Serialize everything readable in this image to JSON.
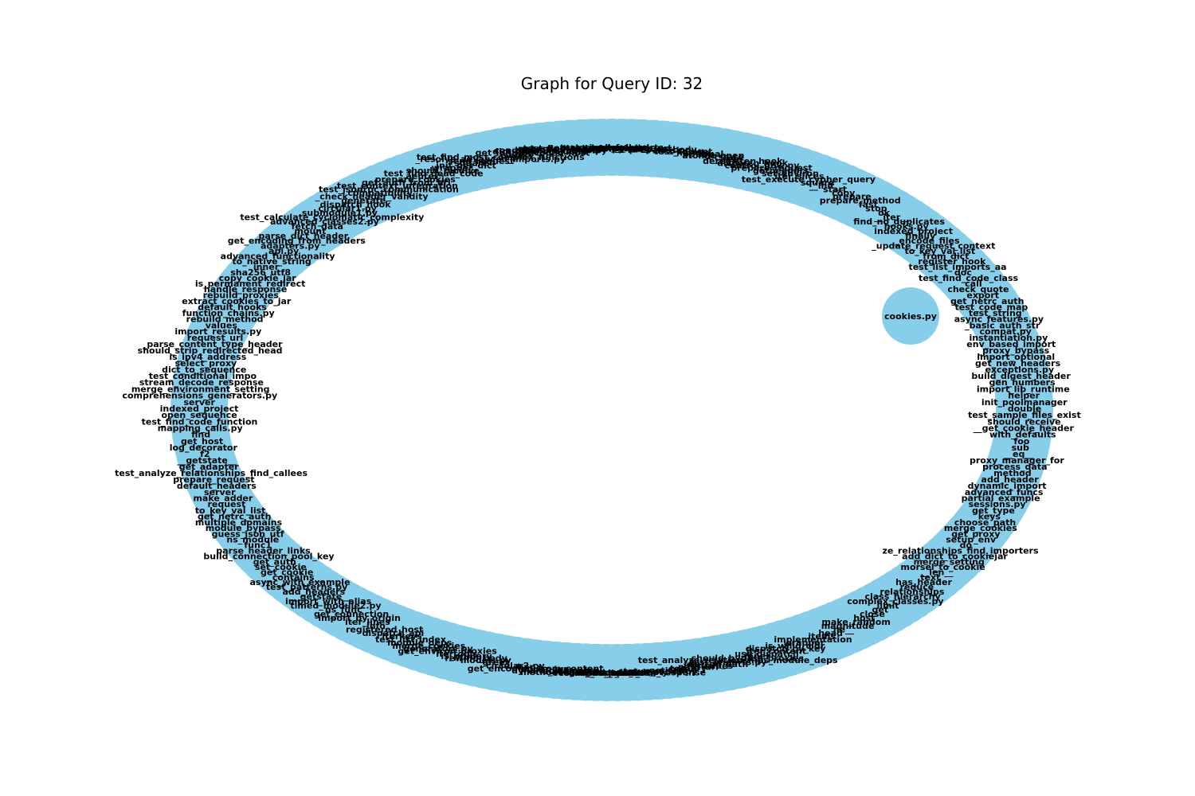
{
  "title": "Graph for Query ID: 32",
  "colors": {
    "node": "#87CEEB",
    "label": "#000000",
    "background": "#ffffff"
  },
  "graph": {
    "layout": "circular",
    "ring_labels": [
      "test_circular_imports",
      "get_full_url",
      "__call__",
      "requote_uri",
      "request",
      "prepare_body",
      "session",
      "test_toolset",
      "handle",
      "optional",
      "atomic_open",
      "setstate",
      "__repr__",
      "deregister_hook",
      "dispatch_hook",
      "control_flow.py",
      "prepare_request",
      "getheaders",
      "set_environ",
      "iter_slices",
      "test_execute_cypher_query",
      "square",
      "__init__",
      "start",
      "copy",
      "prepare",
      "prepare_method",
      "fast",
      "stop",
      "ok",
      "__iter__",
      "find_no_duplicates",
      "hooks.py",
      "indexed_project",
      "finally",
      "_encode_files",
      "_update_request_context",
      "to_key_val_list",
      "from_dict",
      "register_hook",
      "test_list_imports_aa",
      "doc",
      "test_find_code_class",
      "call",
      "check_quote",
      "export",
      "get_netrc_auth",
      "test_code_map",
      "test_string",
      "async_features.py",
      "_basic_auth_str",
      "compat.py",
      "instantiation.py",
      "env_based_import",
      "_proxy_bypass",
      "import_optional",
      "get_new_headers",
      "exceptions.py",
      "build_digest_header",
      "gen_numbers",
      "import_lib_runtime",
      "helper",
      "init_poolmanager",
      "double",
      "test_sample_files_exist",
      "should_receive",
      "__get_cookie_header",
      "with_defaults",
      "foo",
      "sub",
      "__eq__",
      "proxy_manager_for",
      "process_data",
      "method",
      "add_header",
      "dynamic_import",
      "advanced_funcs",
      "partial_example",
      "sessions.py",
      "get_type",
      "keys",
      "choose_path",
      "merge_cookies",
      "get_proxy",
      "setup_env",
      "do",
      "ze_relationships_find_importers",
      "add_dict_to_cookiejar",
      "merge_setting",
      "morsel_to_cookie",
      "__len__",
      "text",
      "has_header",
      "reduce",
      "_relationships",
      "class_hierarchy",
      "complex_classes.py",
      "limit",
      "get",
      "close",
      "host",
      "make_random",
      "magnitude",
      "__ne__",
      "head",
      "items",
      "implementation",
      "wrapper",
      "is_valid_cidr",
      "dispatch_by_key",
      "iter_content",
      "use_dispatch",
      "inner",
      "should_bypass_proxies",
      "test_analyze_relationships_module_deps",
      "test_imports.py",
      "dotted_path",
      "itervalues",
      "path_url",
      "ternary",
      "put",
      "getitem",
      "status_codes.py",
      "multiply",
      "get_unicode_from_response",
      "_init_",
      "class_method",
      "encode_params",
      "resolve_redirects",
      "add",
      "methodcaller_example",
      "is_redirect",
      "dynamic_dispatch",
      "super_len",
      "get_encoding_from_content",
      "bar",
      "circular2.py",
      "f3",
      "greet",
      "models.py",
      "rewind_body",
      "is_primary",
      "itertools",
      "get_environ_proxies",
      "generators.py",
      "merge_cookies",
      "module_deps",
      "test_list_index",
      "iterkeys",
      "dispatch_api",
      "registered_host",
      "info",
      "iter_lines",
      "import_by_origin",
      "get_connection",
      "ns_func",
      "timed_module2.py",
      "import_with_alias",
      "__getstate__",
      "add_headers",
      "test_patterns.py",
      "async_with_example",
      "__contains__",
      "get_cookie",
      "set_cookie",
      "get_auth",
      "build_connection_pool_key",
      "parse_header_links",
      "func1",
      "ns_module",
      "guess_json_utf",
      "module_bypass",
      "multiple_domains",
      "get_netrc_auth",
      "to_key_val_list",
      "request",
      "make_adder",
      "server",
      "default_headers",
      "prepare_request",
      "test_analyze_relationships_find_callees",
      "get_adapter",
      "__getstate__",
      "f2",
      "log_decorator",
      "get_host",
      "find",
      "mapping_calls.py",
      "test_find_code_function",
      "open_sequence",
      "indexed_project",
      "server",
      "comprehensions_generators.py",
      "merge_environment_setting",
      "stream_decode_response",
      "test_conditional_impo",
      "dict_to_sequence",
      "select_proxy",
      "is_ipv4_address",
      "should_strip_redirected_head",
      "_parse_content_type_header",
      "request_url",
      "import_results.py",
      "values",
      "rebuild_method",
      "function_chains.py",
      "default_hooks",
      "extract_cookies_to_jar",
      "rebuild_proxies",
      "handle_response",
      "is_permanent_redirect",
      "_copy_cookie_jar",
      "sha256_utf8",
      "inner",
      "to_native_string",
      "advanced_functionality",
      "api.py",
      "adapters.py",
      "get_encoding_from_headers",
      "parse_dict_header",
      "mount",
      "fetch_data",
      "advanced_classes2.py",
      "test_calculate_cyclomatic_complexity",
      "submodule1.py",
      "circular1.py",
      "dispatch_hook",
      "generate",
      "_check_header_validity",
      "compatibility",
      "test_jsonrpc_communication",
      "test_context_integration",
      "get_auth_from_url",
      "prepare_cookies",
      "_aenter__",
      "test_find_dead_code",
      "should_receive",
      "wrapper",
      "__init_get_dict",
      "square",
      "send_request",
      "_resolve_advanced_imports.py",
      "test_find_most_complex_functions",
      "json",
      "links",
      "_get_idna_encoded_host",
      "dict_from_cookiejar",
      "conditional_imports.py",
      "unicode_headers",
      "enhanced_imports.py",
      "test_find_code_function",
      "context_manager",
      "get_class"
    ],
    "isolated_labels": [
      "cookies.py"
    ]
  }
}
